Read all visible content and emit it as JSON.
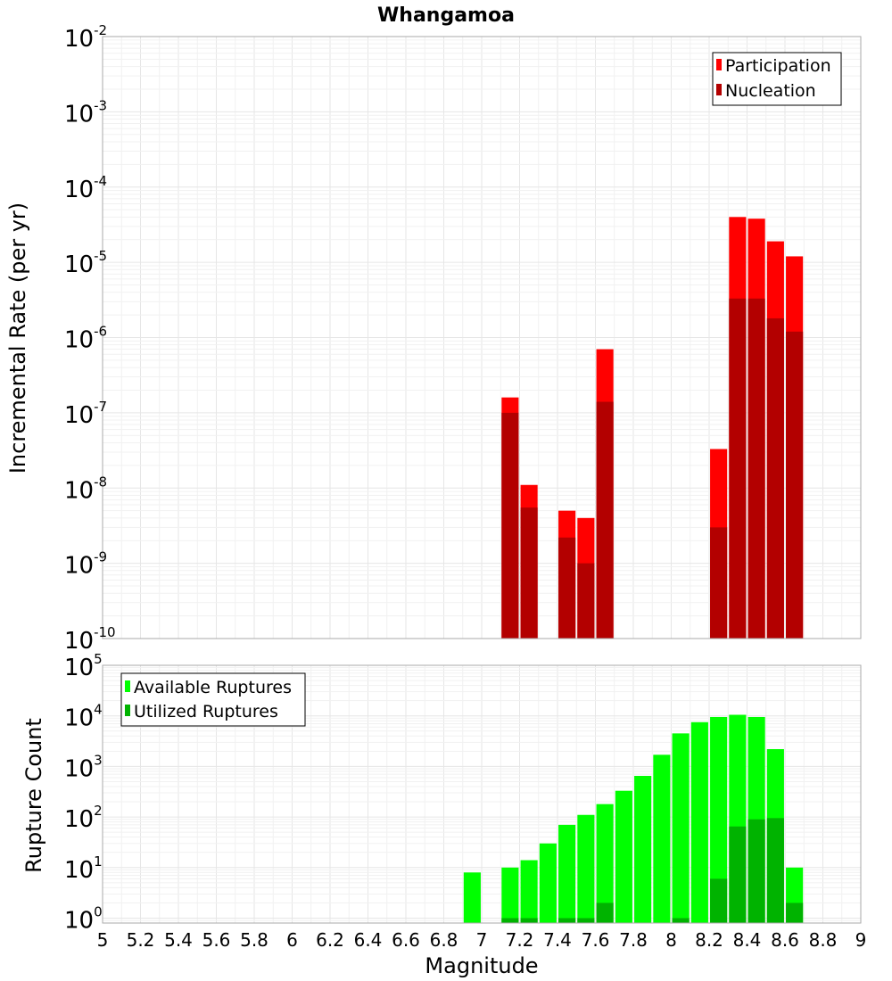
{
  "chart_data": [
    {
      "type": "bar",
      "title": "Whangamoa",
      "ylabel": "Incremental Rate (per yr)",
      "xlabel": "",
      "x_range": [
        5,
        9
      ],
      "ylim": [
        1e-10,
        0.01
      ],
      "y_scale": "log",
      "y_tick_exponents": [
        -10,
        -9,
        -8,
        -7,
        -6,
        -5,
        -4,
        -3,
        -2
      ],
      "grid": true,
      "legend_position": "top-right",
      "bar_width": 0.09,
      "series": [
        {
          "name": "Participation",
          "color": "#ff0000",
          "x": [
            7.15,
            7.25,
            7.45,
            7.55,
            7.65,
            8.25,
            8.35,
            8.45,
            8.55,
            8.65
          ],
          "values": [
            1.6e-07,
            1.1e-08,
            5e-09,
            4e-09,
            7e-07,
            3.3e-08,
            4e-05,
            3.8e-05,
            1.9e-05,
            1.2e-05
          ]
        },
        {
          "name": "Nucleation",
          "color": "#b30000",
          "x": [
            7.15,
            7.25,
            7.45,
            7.55,
            7.65,
            8.25,
            8.35,
            8.45,
            8.55,
            8.65
          ],
          "values": [
            1e-07,
            5.5e-09,
            2.2e-09,
            1e-09,
            1.4e-07,
            3e-09,
            3.3e-06,
            3.3e-06,
            1.8e-06,
            1.2e-06
          ]
        }
      ]
    },
    {
      "type": "bar",
      "title": "",
      "ylabel": "Rupture Count",
      "xlabel": "Magnitude",
      "x_range": [
        5,
        9
      ],
      "x_ticks": [
        "5",
        "5.2",
        "5.4",
        "5.6",
        "5.8",
        "6",
        "6.2",
        "6.4",
        "6.6",
        "6.8",
        "7",
        "7.2",
        "7.4",
        "7.6",
        "7.8",
        "8",
        "8.2",
        "8.4",
        "8.6",
        "8.8",
        "9"
      ],
      "ylim": [
        0.8,
        100000.0
      ],
      "y_scale": "log",
      "y_tick_exponents": [
        0,
        1,
        2,
        3,
        4,
        5
      ],
      "grid": true,
      "legend_position": "top-left",
      "bar_width": 0.09,
      "series": [
        {
          "name": "Available Ruptures",
          "color": "#00ff00",
          "x": [
            6.95,
            7.15,
            7.25,
            7.35,
            7.45,
            7.55,
            7.65,
            7.75,
            7.85,
            7.95,
            8.05,
            8.15,
            8.25,
            8.35,
            8.45,
            8.55,
            8.65
          ],
          "values": [
            8,
            10,
            14,
            30,
            70,
            110,
            180,
            330,
            650,
            1700,
            4500,
            7500,
            9500,
            10500,
            9500,
            2200,
            10
          ]
        },
        {
          "name": "Utilized Ruptures",
          "color": "#00b300",
          "x": [
            7.15,
            7.25,
            7.45,
            7.55,
            7.65,
            8.05,
            8.25,
            8.35,
            8.45,
            8.55,
            8.65
          ],
          "values": [
            1,
            1,
            1,
            1,
            2,
            1,
            6,
            65,
            90,
            95,
            2
          ]
        }
      ]
    }
  ]
}
